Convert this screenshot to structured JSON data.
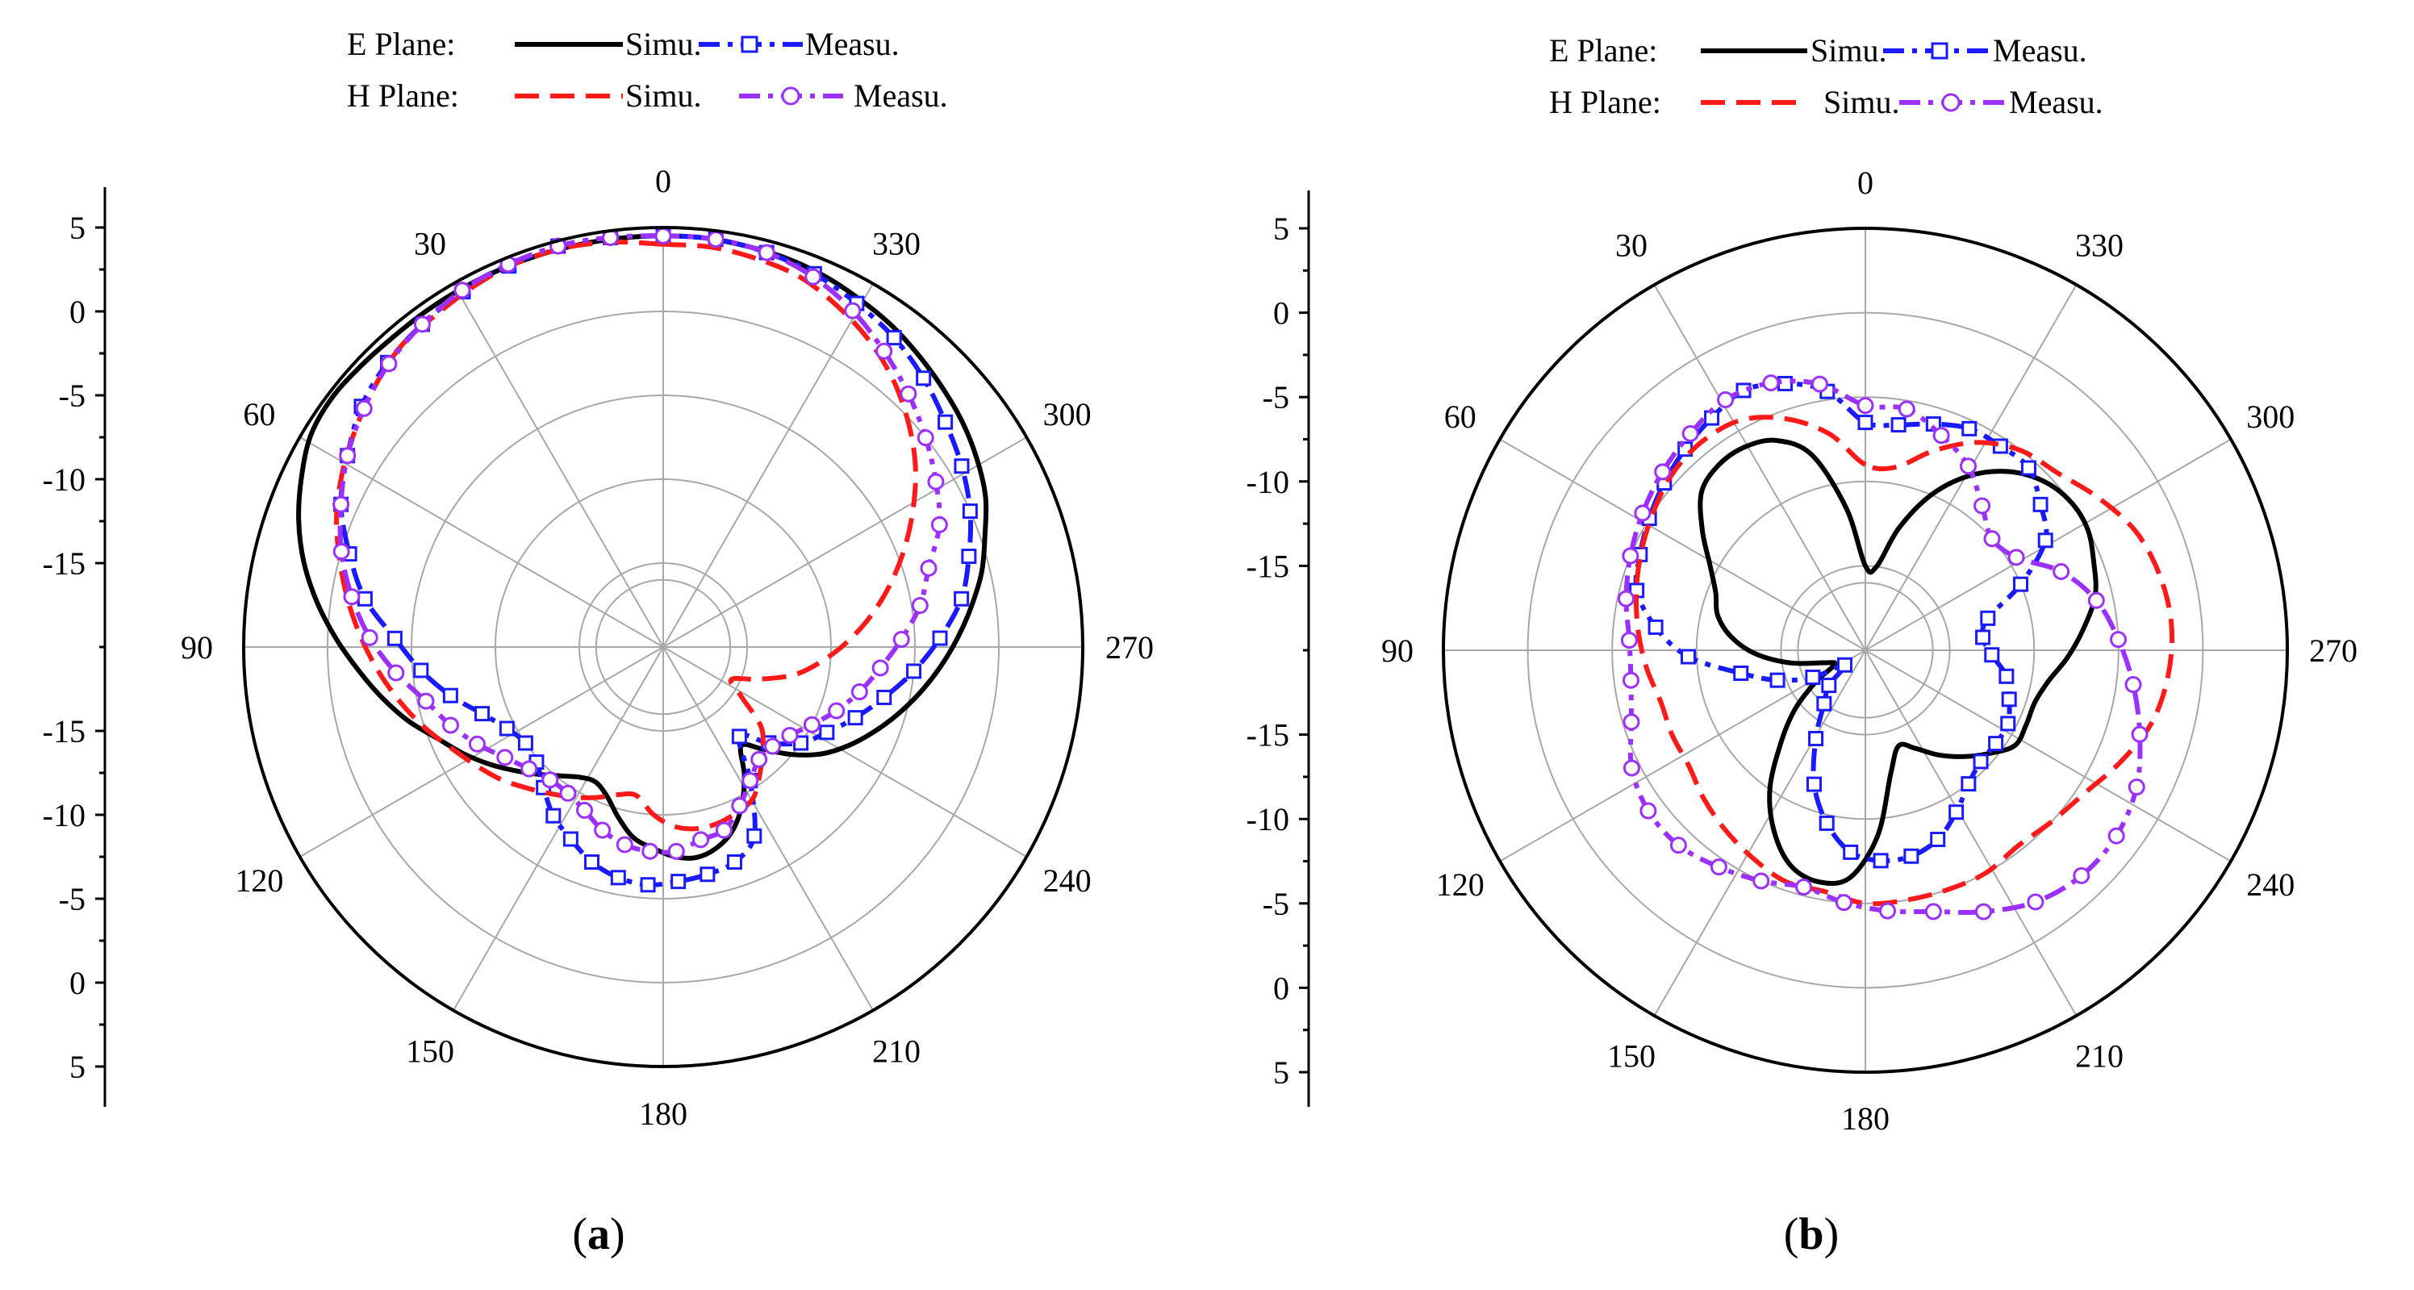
{
  "figure": {
    "panels": [
      {
        "label_open": "(",
        "label_letter": "a",
        "label_close": ")",
        "legend": {
          "e_plane": "E Plane:",
          "h_plane": "H Plane:",
          "simu": "Simu.",
          "measu": "Measu."
        },
        "angle_labels": [
          "0",
          "30",
          "60",
          "90",
          "120",
          "150",
          "180",
          "210",
          "240",
          "270",
          "300",
          "330"
        ],
        "radial_tick_labels": [
          "5",
          "0",
          "-5",
          "-10",
          "-15",
          "-15",
          "-10",
          "-5",
          "0",
          "5"
        ]
      },
      {
        "label_open": "(",
        "label_letter": "b",
        "label_close": ")",
        "legend": {
          "e_plane": "E Plane:",
          "h_plane": "H Plane:",
          "simu": "Simu.",
          "measu": "Measu."
        },
        "angle_labels": [
          "0",
          "30",
          "60",
          "90",
          "120",
          "150",
          "180",
          "210",
          "240",
          "270",
          "300",
          "330"
        ],
        "radial_tick_labels": [
          "5",
          "0",
          "-5",
          "-10",
          "-15",
          "-15",
          "-10",
          "-5",
          "0",
          "5"
        ]
      }
    ]
  },
  "colors": {
    "e_simu": "#000000",
    "e_measu": "#1a1aff",
    "h_simu": "#ff1a1a",
    "h_measu": "#9b30ff",
    "grid": "#a8a8a8"
  },
  "chart_data": [
    {
      "type": "polar-line",
      "title": "(a)",
      "angle_unit": "degrees",
      "angle_direction": "counter-clockwise, 0 at top",
      "r_axis": {
        "min": -20,
        "max": 5,
        "ticks": [
          5,
          0,
          -5,
          -10,
          -15
        ]
      },
      "series": [
        {
          "name": "E Plane Simu.",
          "style": "solid",
          "r": [
            4.5,
            4.5,
            4.5,
            4.5,
            4.5,
            4.5,
            4.5,
            4.5,
            4.6,
            4.7,
            4.5,
            3.8,
            3.0,
            2.0,
            0.8,
            -0.5,
            -1.8,
            -3.0,
            -4.2,
            -5.5,
            -6.5,
            -7.5,
            -8.5,
            -9.4,
            -10.2,
            -10.8,
            -11.0,
            -10.5,
            -9.5,
            -8.5,
            -8.0,
            -7.5,
            -7.3,
            -7.6,
            -8.3,
            -9.5,
            -11.0,
            -12.5,
            -11.5,
            -10.0,
            -8.6,
            -7.5,
            -6.5,
            -5.5,
            -4.5,
            -3.5,
            -2.5,
            -1.5,
            -0.5,
            0.3,
            1.2,
            1.8,
            2.3,
            2.7,
            3.1,
            3.5,
            3.8,
            4.1,
            4.3,
            4.4,
            4.5
          ]
        },
        {
          "name": "E Plane Measu.",
          "style": "dash-dot",
          "marker": "square",
          "r": [
            4.5,
            4.6,
            4.7,
            4.5,
            4.3,
            4.0,
            3.6,
            3.0,
            2.0,
            1.0,
            -0.5,
            -2.0,
            -4.0,
            -5.5,
            -7.0,
            -8.5,
            -9.5,
            -10.0,
            -9.8,
            -9.0,
            -8.0,
            -7.3,
            -6.5,
            -6.0,
            -5.8,
            -6.0,
            -6.2,
            -6.5,
            -7.5,
            -10.5,
            -13.0,
            -11.5,
            -10.0,
            -9.0,
            -7.8,
            -6.5,
            -5.0,
            -3.5,
            -2.0,
            -1.0,
            0.0,
            0.8,
            1.5,
            2.3,
            3.0,
            3.5,
            4.0,
            4.3,
            4.5
          ]
        },
        {
          "name": "H Plane Simu.",
          "style": "dashed",
          "r": [
            4.0,
            4.3,
            4.5,
            4.5,
            4.3,
            4.0,
            3.8,
            3.2,
            2.5,
            1.8,
            1.0,
            0.0,
            -1.0,
            -2.0,
            -3.0,
            -4.0,
            -5.0,
            -6.0,
            -6.8,
            -7.5,
            -8.3,
            -9.0,
            -9.6,
            -10.2,
            -10.8,
            -11.0,
            -10.0,
            -9.3,
            -9.0,
            -9.0,
            -9.2,
            -9.5,
            -10.5,
            -11.5,
            -12.5,
            -14.5,
            -15.5,
            -14.0,
            -12.0,
            -10.5,
            -9.0,
            -7.5,
            -6.0,
            -4.5,
            -3.0,
            -1.5,
            -0.2,
            1.0,
            2.0,
            2.8,
            3.5,
            3.8,
            4.0
          ]
        },
        {
          "name": "H Plane Measu.",
          "style": "dash-dot",
          "marker": "circle",
          "r": [
            4.5,
            4.6,
            4.7,
            4.6,
            4.4,
            4.0,
            3.5,
            2.8,
            2.0,
            1.0,
            0.0,
            -1.2,
            -2.5,
            -4.0,
            -5.5,
            -6.5,
            -7.5,
            -8.5,
            -9.2,
            -9.6,
            -9.6,
            -9.2,
            -8.5,
            -8.0,
            -7.8,
            -7.8,
            -8.3,
            -8.5,
            -9.5,
            -10.5,
            -11.2,
            -11.2,
            -10.8,
            -10.0,
            -9.0,
            -8.0,
            -7.0,
            -5.8,
            -4.5,
            -3.5,
            -2.0,
            -1.0,
            0.0,
            1.0,
            2.0,
            3.0,
            3.8,
            4.3,
            4.5
          ]
        }
      ]
    },
    {
      "type": "polar-line",
      "title": "(b)",
      "angle_unit": "degrees",
      "angle_direction": "counter-clockwise, 0 at top",
      "r_axis": {
        "min": -20,
        "max": 5,
        "ticks": [
          5,
          0,
          -5,
          -10,
          -15
        ]
      },
      "series": [
        {
          "name": "E Plane Simu.",
          "style": "solid",
          "r": [
            -15.0,
            -11.5,
            -8.0,
            -6.5,
            -6.0,
            -6.0,
            -6.5,
            -8.0,
            -9.5,
            -10.5,
            -11.0,
            -12.0,
            -13.5,
            -15.5,
            -17.5,
            -18.0,
            -16.5,
            -14.5,
            -12.5,
            -10.0,
            -8.0,
            -6.5,
            -6.0,
            -6.5,
            -9.0,
            -12.5,
            -14.0,
            -13.5,
            -12.5,
            -11.5,
            -10.5,
            -9.5,
            -9.5,
            -9.5,
            -9.0,
            -8.0,
            -7.0,
            -6.0,
            -5.5,
            -5.0,
            -5.0,
            -5.5,
            -6.5,
            -8.0,
            -10.0,
            -12.5,
            -15.0
          ]
        },
        {
          "name": "E Plane Measu.",
          "style": "dash-dot",
          "marker": "square",
          "r": [
            -6.5,
            -4.5,
            -3.5,
            -3.0,
            -3.5,
            -4.0,
            -4.5,
            -5.0,
            -5.5,
            -6.0,
            -7.5,
            -9.5,
            -12.5,
            -14.5,
            -16.5,
            -18.5,
            -17.0,
            -16.0,
            -14.0,
            -11.5,
            -9.5,
            -8.0,
            -7.5,
            -7.5,
            -8.0,
            -9.0,
            -10.0,
            -10.5,
            -10.5,
            -10.5,
            -11.0,
            -11.5,
            -12.5,
            -13.0,
            -12.5,
            -10.0,
            -7.5,
            -6.5,
            -5.5,
            -5.5,
            -5.5,
            -6.0,
            -6.5
          ]
        },
        {
          "name": "H Plane Simu.",
          "style": "dashed",
          "r": [
            -9.0,
            -7.0,
            -5.5,
            -4.5,
            -4.3,
            -4.5,
            -5.0,
            -5.5,
            -6.0,
            -6.5,
            -7.0,
            -7.5,
            -7.5,
            -7.5,
            -7.0,
            -6.5,
            -6.0,
            -5.5,
            -5.5,
            -5.0,
            -5.0,
            -5.0,
            -5.0,
            -5.3,
            -5.0,
            -4.5,
            -3.5,
            -2.5,
            -2.0,
            -1.8,
            -2.0,
            -2.5,
            -3.5,
            -4.5,
            -5.0,
            -6.0,
            -7.5,
            -9.0
          ]
        },
        {
          "name": "H Plane Measu.",
          "style": "dash-dot",
          "marker": "circle",
          "r": [
            -5.5,
            -4.0,
            -3.2,
            -3.0,
            -3.5,
            -4.0,
            -4.5,
            -5.0,
            -5.5,
            -6.0,
            -6.0,
            -5.5,
            -4.5,
            -4.0,
            -4.0,
            -4.5,
            -5.0,
            -5.5,
            -5.0,
            -4.5,
            -4.0,
            -3.0,
            -2.0,
            -1.5,
            -1.5,
            -2.0,
            -3.0,
            -4.0,
            -5.0,
            -6.0,
            -7.5,
            -9.5,
            -10.0,
            -9.0,
            -7.5,
            -6.5,
            -5.5
          ]
        }
      ]
    }
  ]
}
